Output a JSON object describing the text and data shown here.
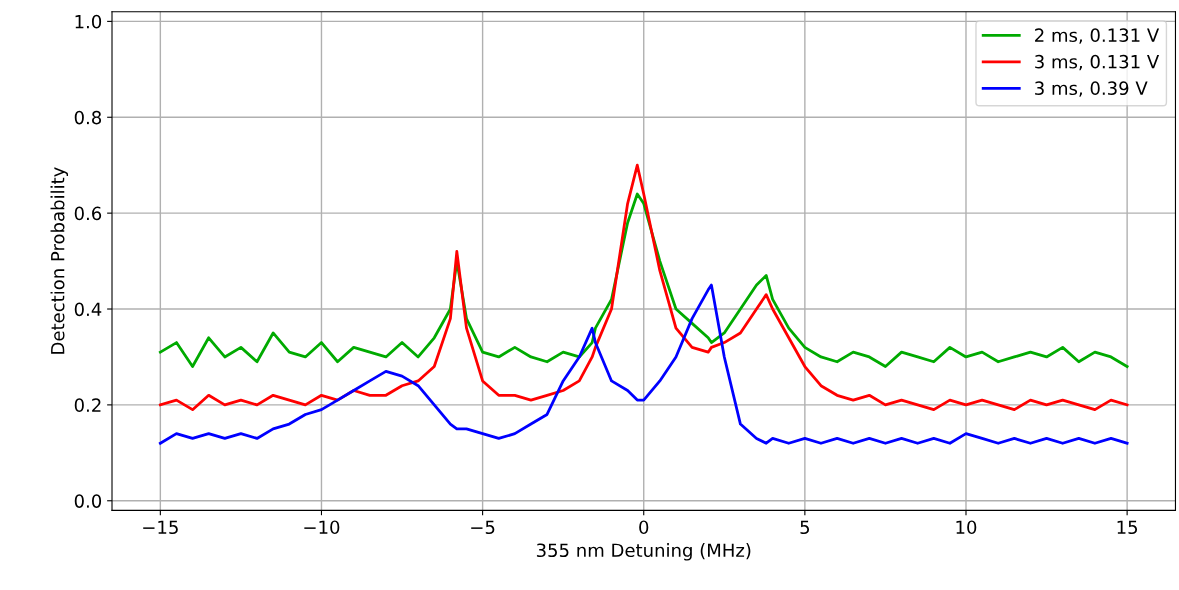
{
  "chart_data": {
    "type": "line",
    "xlabel": "355 nm Detuning (MHz)",
    "ylabel": "Detection Probability",
    "x": [
      -15,
      -14.5,
      -14,
      -13.5,
      -13,
      -12.5,
      -12,
      -11.5,
      -11,
      -10.5,
      -10,
      -9.5,
      -9,
      -8.5,
      -8,
      -7.5,
      -7,
      -6.5,
      -6,
      -5.8,
      -5.5,
      -5,
      -4.5,
      -4,
      -3.5,
      -3,
      -2.5,
      -2,
      -1.6,
      -1.5,
      -1,
      -0.5,
      -0.2,
      0,
      0.5,
      1,
      1.5,
      2,
      2.1,
      2.5,
      3,
      3.5,
      3.8,
      4,
      4.5,
      5,
      5.5,
      6,
      6.5,
      7,
      7.5,
      8,
      8.5,
      9,
      9.5,
      10,
      10.5,
      11,
      11.5,
      12,
      12.5,
      13,
      13.5,
      14,
      14.5,
      15
    ],
    "series": [
      {
        "name": "2 ms, 0.131 V",
        "color": "#00aa00",
        "values": [
          0.31,
          0.33,
          0.28,
          0.34,
          0.3,
          0.32,
          0.29,
          0.35,
          0.31,
          0.3,
          0.33,
          0.29,
          0.32,
          0.31,
          0.3,
          0.33,
          0.3,
          0.34,
          0.4,
          0.5,
          0.38,
          0.31,
          0.3,
          0.32,
          0.3,
          0.29,
          0.31,
          0.3,
          0.33,
          0.36,
          0.42,
          0.58,
          0.64,
          0.62,
          0.5,
          0.4,
          0.37,
          0.34,
          0.33,
          0.35,
          0.4,
          0.45,
          0.47,
          0.42,
          0.36,
          0.32,
          0.3,
          0.29,
          0.31,
          0.3,
          0.28,
          0.31,
          0.3,
          0.29,
          0.32,
          0.3,
          0.31,
          0.29,
          0.3,
          0.31,
          0.3,
          0.32,
          0.29,
          0.31,
          0.3,
          0.28
        ]
      },
      {
        "name": "3 ms, 0.131 V",
        "color": "#ff0000",
        "values": [
          0.2,
          0.21,
          0.19,
          0.22,
          0.2,
          0.21,
          0.2,
          0.22,
          0.21,
          0.2,
          0.22,
          0.21,
          0.23,
          0.22,
          0.22,
          0.24,
          0.25,
          0.28,
          0.38,
          0.52,
          0.36,
          0.25,
          0.22,
          0.22,
          0.21,
          0.22,
          0.23,
          0.25,
          0.3,
          0.32,
          0.4,
          0.62,
          0.7,
          0.64,
          0.48,
          0.36,
          0.32,
          0.31,
          0.32,
          0.33,
          0.35,
          0.4,
          0.43,
          0.4,
          0.34,
          0.28,
          0.24,
          0.22,
          0.21,
          0.22,
          0.2,
          0.21,
          0.2,
          0.19,
          0.21,
          0.2,
          0.21,
          0.2,
          0.19,
          0.21,
          0.2,
          0.21,
          0.2,
          0.19,
          0.21,
          0.2
        ]
      },
      {
        "name": "3 ms, 0.39 V",
        "color": "#0000ff",
        "values": [
          0.12,
          0.14,
          0.13,
          0.14,
          0.13,
          0.14,
          0.13,
          0.15,
          0.16,
          0.18,
          0.19,
          0.21,
          0.23,
          0.25,
          0.27,
          0.26,
          0.24,
          0.2,
          0.16,
          0.15,
          0.15,
          0.14,
          0.13,
          0.14,
          0.16,
          0.18,
          0.25,
          0.3,
          0.36,
          0.33,
          0.25,
          0.23,
          0.21,
          0.21,
          0.25,
          0.3,
          0.38,
          0.44,
          0.45,
          0.3,
          0.16,
          0.13,
          0.12,
          0.13,
          0.12,
          0.13,
          0.12,
          0.13,
          0.12,
          0.13,
          0.12,
          0.13,
          0.12,
          0.13,
          0.12,
          0.14,
          0.13,
          0.12,
          0.13,
          0.12,
          0.13,
          0.12,
          0.13,
          0.12,
          0.13,
          0.12
        ]
      }
    ],
    "xlim": [
      -16.5,
      16.5
    ],
    "ylim": [
      -0.02,
      1.02
    ],
    "xticks": [
      {
        "value": -15,
        "label": "−15"
      },
      {
        "value": -10,
        "label": "−10"
      },
      {
        "value": -5,
        "label": "−5"
      },
      0,
      5,
      10,
      15
    ],
    "yticks": [
      {
        "value": 0,
        "label": "0.0"
      },
      0.2,
      0.4,
      0.6,
      0.8,
      {
        "value": 1,
        "label": "1.0"
      }
    ],
    "grid": true,
    "legend": "top right"
  }
}
